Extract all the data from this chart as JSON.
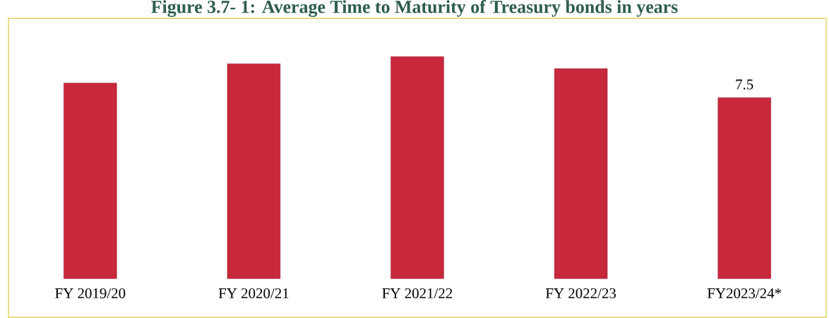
{
  "chart_data": {
    "type": "bar",
    "title": "Figure 3.7- 1: Average Time to Maturity of Treasury bonds in years",
    "categories": [
      "FY 2019/20",
      "FY 2020/21",
      "FY 2021/22",
      "FY 2022/23",
      "FY2023/24*"
    ],
    "values": [
      8.1,
      8.9,
      9.2,
      8.7,
      7.5
    ],
    "value_labels": [
      null,
      null,
      null,
      null,
      "7.5"
    ],
    "color": "#c8283c"
  }
}
